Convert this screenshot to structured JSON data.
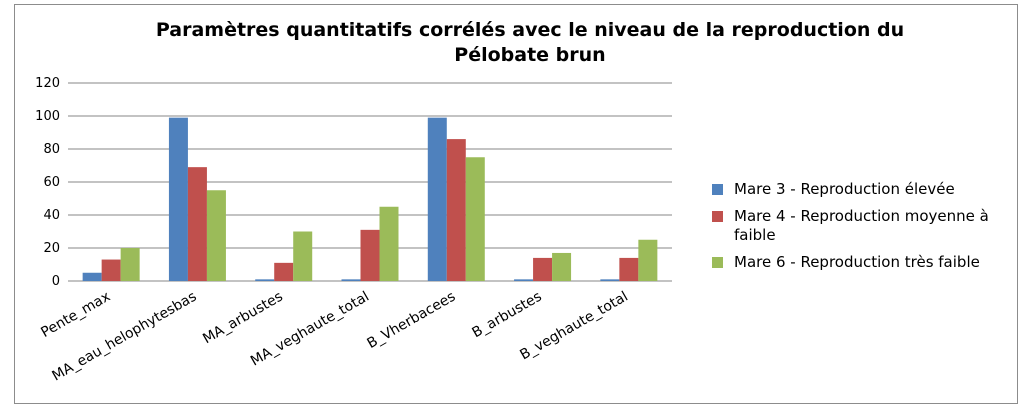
{
  "chart_data": {
    "type": "bar",
    "title": "Paramètres quantitatifs corrélés avec le niveau de la reproduction du Pélobate brun",
    "categories": [
      "Pente_max",
      "MA_eau_helophytesbas",
      "MA_arbustes",
      "MA_veghaute_total",
      "B_Vherbacees",
      "B_arbustes",
      "B_veghaute_total"
    ],
    "series": [
      {
        "name": "Mare 3 - Reproduction élevée",
        "color": "#4f81bd",
        "values": [
          5,
          99,
          1,
          1,
          99,
          1,
          1
        ]
      },
      {
        "name": "Mare 4 - Reproduction moyenne à faible",
        "color": "#c0504d",
        "values": [
          13,
          69,
          11,
          31,
          86,
          14,
          14
        ]
      },
      {
        "name": "Mare 6 - Reproduction très faible",
        "color": "#9bbb59",
        "values": [
          20,
          55,
          30,
          45,
          75,
          17,
          25
        ]
      }
    ],
    "ylim": [
      0,
      120
    ],
    "yticks": [
      0,
      20,
      40,
      60,
      80,
      100,
      120
    ],
    "grid": true,
    "legend": "right"
  }
}
